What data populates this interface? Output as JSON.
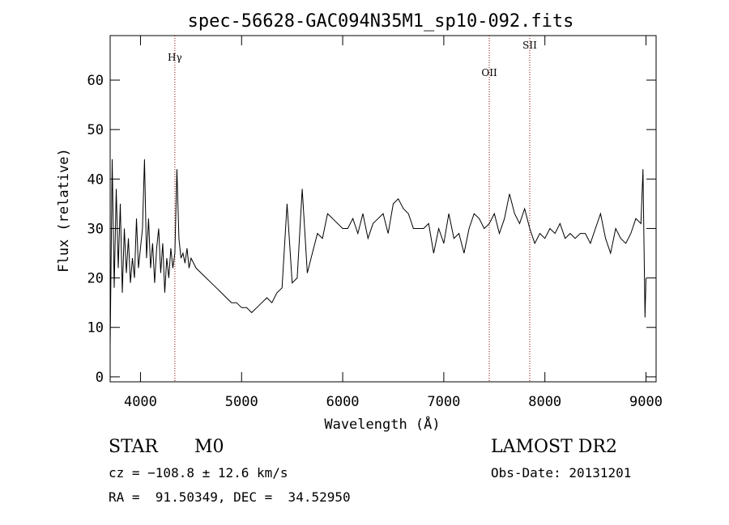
{
  "chart_data": {
    "type": "line",
    "title": "spec-56628-GAC094N35M1_sp10-092.fits",
    "xlabel": "Wavelength (Å)",
    "ylabel": "Flux (relative)",
    "xlim": [
      3700,
      9100
    ],
    "ylim": [
      -1,
      69
    ],
    "x_ticks": [
      4000,
      5000,
      6000,
      7000,
      8000,
      9000
    ],
    "y_ticks": [
      0,
      10,
      20,
      30,
      40,
      50,
      60
    ],
    "grid": false,
    "series": [
      {
        "x": [
          3700,
          3720,
          3740,
          3760,
          3780,
          3800,
          3820,
          3840,
          3860,
          3880,
          3900,
          3920,
          3940,
          3960,
          3980,
          4000,
          4020,
          4040,
          4060,
          4080,
          4100,
          4120,
          4140,
          4160,
          4180,
          4200,
          4220,
          4240,
          4260,
          4280,
          4300,
          4320,
          4340,
          4360,
          4380,
          4400,
          4420,
          4440,
          4460,
          4480,
          4500,
          4550,
          4600,
          4650,
          4700,
          4750,
          4800,
          4850,
          4900,
          4950,
          5000,
          5050,
          5100,
          5150,
          5200,
          5250,
          5300,
          5350,
          5400,
          5450,
          5500,
          5550,
          5600,
          5650,
          5700,
          5750,
          5800,
          5850,
          5900,
          5950,
          6000,
          6050,
          6100,
          6150,
          6200,
          6250,
          6300,
          6350,
          6400,
          6450,
          6500,
          6550,
          6600,
          6650,
          6700,
          6750,
          6800,
          6850,
          6900,
          6950,
          7000,
          7050,
          7100,
          7150,
          7200,
          7250,
          7300,
          7350,
          7400,
          7450,
          7500,
          7550,
          7600,
          7650,
          7700,
          7750,
          7800,
          7850,
          7900,
          7950,
          8000,
          8050,
          8100,
          8150,
          8200,
          8250,
          8300,
          8350,
          8400,
          8450,
          8500,
          8550,
          8600,
          8650,
          8700,
          8750,
          8800,
          8850,
          8900,
          8950,
          8970,
          8990,
          9000
        ],
        "y": [
          6,
          44,
          18,
          38,
          22,
          35,
          17,
          30,
          21,
          28,
          19,
          24,
          20,
          32,
          22,
          26,
          30,
          44,
          24,
          32,
          22,
          27,
          19,
          26,
          30,
          21,
          27,
          17,
          24,
          20,
          26,
          22,
          25,
          42,
          28,
          24,
          25,
          23,
          26,
          22,
          24,
          22,
          21,
          20,
          19,
          18,
          17,
          16,
          15,
          15,
          14,
          14,
          13,
          14,
          15,
          16,
          15,
          17,
          18,
          35,
          19,
          20,
          38,
          21,
          25,
          29,
          28,
          33,
          32,
          31,
          30,
          30,
          32,
          29,
          33,
          28,
          31,
          32,
          33,
          29,
          35,
          36,
          34,
          33,
          30,
          30,
          30,
          31,
          25,
          30,
          27,
          33,
          28,
          29,
          25,
          30,
          33,
          32,
          30,
          31,
          33,
          29,
          32,
          37,
          33,
          31,
          34,
          30,
          27,
          29,
          28,
          30,
          29,
          31,
          28,
          29,
          28,
          29,
          29,
          27,
          30,
          33,
          28,
          25,
          30,
          28,
          27,
          29,
          32,
          31,
          42,
          12,
          20
        ],
        "stroke": "#000000"
      }
    ],
    "lines": [
      {
        "name": "Hγ",
        "x": 4340
      },
      {
        "name": "OII",
        "x": 7450
      },
      {
        "name": "SII",
        "x": 7850
      }
    ]
  },
  "info": {
    "class_text": "STAR",
    "subclass_text": "M0",
    "survey": "LAMOST DR2",
    "cz": "cz = −108.8 ± 12.6 km/s",
    "obs_date": "Obs-Date: 20131201",
    "coords": "RA =  91.50349, DEC =  34.52950"
  },
  "colors": {
    "axis": "#000000",
    "line_marker": "#8b0000",
    "background": "#ffffff"
  }
}
